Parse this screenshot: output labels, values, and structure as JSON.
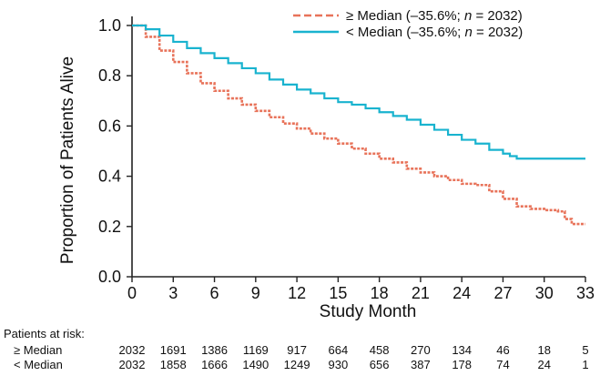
{
  "chart_data": {
    "type": "line",
    "title": "",
    "xlabel": "Study Month",
    "ylabel": "Proportion of Patients Alive",
    "xlim": [
      0,
      33
    ],
    "ylim": [
      0,
      1.0
    ],
    "x_ticks": [
      "0",
      "3",
      "6",
      "9",
      "12",
      "15",
      "18",
      "21",
      "24",
      "27",
      "30",
      "33"
    ],
    "y_ticks": [
      "0.0",
      "0.2",
      "0.4",
      "0.6",
      "0.8",
      "1.0"
    ],
    "grid": false,
    "legend_position": "top-right",
    "series": [
      {
        "key": "ge",
        "legend": {
          "prefix": "≥ Median (–35.6%; ",
          "n_label": "n",
          "suffix": " = 2032)"
        },
        "color": "#e8735a",
        "dashed": true,
        "x": [
          0,
          1,
          2,
          3,
          4,
          5,
          6,
          7,
          8,
          9,
          10,
          11,
          12,
          13,
          14,
          15,
          16,
          17,
          18,
          19,
          20,
          21,
          22,
          23,
          24,
          25,
          26,
          27,
          28,
          29,
          30,
          31,
          31.5,
          32,
          33
        ],
        "y": [
          1.0,
          0.955,
          0.9,
          0.855,
          0.81,
          0.77,
          0.74,
          0.71,
          0.685,
          0.66,
          0.635,
          0.61,
          0.59,
          0.57,
          0.55,
          0.53,
          0.51,
          0.49,
          0.47,
          0.455,
          0.43,
          0.415,
          0.4,
          0.385,
          0.37,
          0.365,
          0.34,
          0.31,
          0.28,
          0.27,
          0.265,
          0.26,
          0.23,
          0.21,
          0.21
        ]
      },
      {
        "key": "lt",
        "legend": {
          "prefix": "< Median (–35.6%; ",
          "n_label": "n",
          "suffix": " = 2032)"
        },
        "color": "#19b3cf",
        "dashed": false,
        "x": [
          0,
          1,
          2,
          3,
          4,
          5,
          6,
          7,
          8,
          9,
          10,
          11,
          12,
          13,
          14,
          15,
          16,
          17,
          18,
          19,
          20,
          21,
          22,
          23,
          24,
          25,
          26,
          27,
          27.5,
          28,
          30,
          33
        ],
        "y": [
          1.0,
          0.985,
          0.96,
          0.935,
          0.91,
          0.89,
          0.87,
          0.85,
          0.83,
          0.81,
          0.785,
          0.765,
          0.745,
          0.73,
          0.71,
          0.695,
          0.685,
          0.67,
          0.655,
          0.64,
          0.625,
          0.605,
          0.585,
          0.565,
          0.545,
          0.53,
          0.505,
          0.49,
          0.48,
          0.47,
          0.47,
          0.47
        ]
      }
    ],
    "at_risk": {
      "title": "Patients at risk:",
      "rows": [
        {
          "label": "≥ Median",
          "values": [
            "2032",
            "1691",
            "1386",
            "1169",
            "917",
            "664",
            "458",
            "270",
            "134",
            "46",
            "18",
            "5"
          ]
        },
        {
          "label": "< Median",
          "values": [
            "2032",
            "1858",
            "1666",
            "1490",
            "1249",
            "930",
            "656",
            "387",
            "178",
            "74",
            "24",
            "1"
          ]
        }
      ]
    }
  }
}
